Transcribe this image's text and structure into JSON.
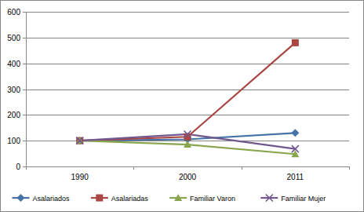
{
  "chart_data": {
    "type": "line",
    "categories": [
      "1990",
      "2000",
      "2011"
    ],
    "series": [
      {
        "name": "Asalariados",
        "color": "#4572a7",
        "marker": "diamond",
        "line_style": "solid",
        "values": [
          100,
          105,
          130
        ]
      },
      {
        "name": "Asalariadas",
        "color": "#aa4643",
        "marker": "square",
        "line_style": "solid",
        "values": [
          100,
          115,
          480
        ]
      },
      {
        "name": "Familiar Varon",
        "color": "#89a54e",
        "marker": "triangle",
        "line_style": "solid",
        "values": [
          100,
          85,
          48
        ]
      },
      {
        "name": "Familiar Mujer",
        "color": "#71588f",
        "marker": "x",
        "line_style": "solid",
        "values": [
          100,
          125,
          68
        ]
      }
    ],
    "ylim": [
      0,
      600
    ],
    "yticks": [
      0,
      100,
      200,
      300,
      400,
      500,
      600
    ],
    "grid": true,
    "legend": "bottom"
  }
}
